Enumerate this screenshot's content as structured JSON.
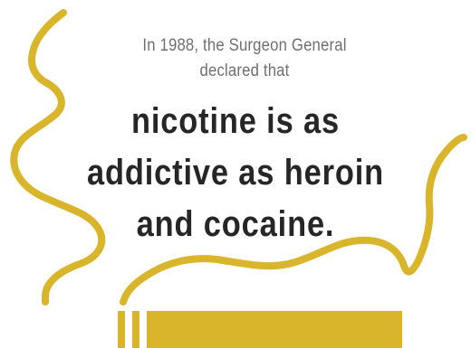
{
  "intro": {
    "line1": "In 1988, the Surgeon General",
    "line2": "declared that"
  },
  "headline": {
    "line1": "nicotine is as",
    "line2": "addictive as heroin",
    "line3": "and cocaine."
  },
  "colors": {
    "smoke_and_cigarette": "#d9b52c",
    "intro_text": "#6f6f6f",
    "headline_text": "#262626",
    "background": "#ffffff"
  },
  "icons": {
    "illustration": "cigarette-with-smoke-icon"
  }
}
